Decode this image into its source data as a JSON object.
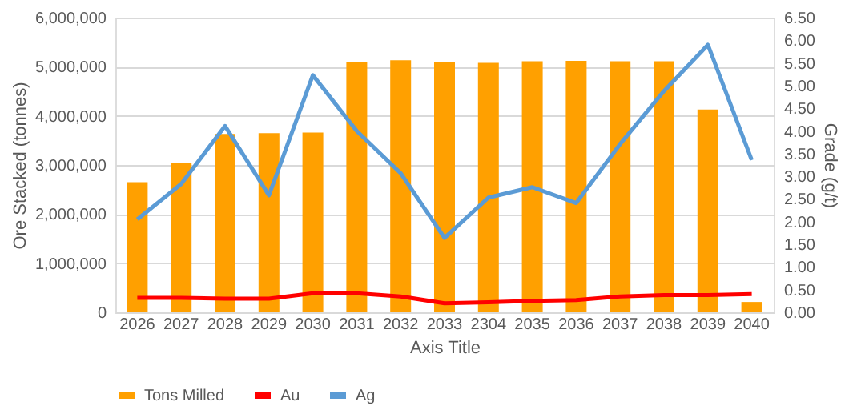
{
  "chart_data": {
    "type": "bar",
    "xlabel": "Axis Title",
    "ylabel": "Ore Stacked (tonnes)",
    "y2label": "Grade (g/t)",
    "categories": [
      "2026",
      "2027",
      "2028",
      "2029",
      "2030",
      "2031",
      "2032",
      "2033",
      "2304",
      "2035",
      "2036",
      "2037",
      "2038",
      "2039",
      "2040"
    ],
    "series": [
      {
        "name": "Tons Milled",
        "color": "#ffa000",
        "values": [
          2650000,
          3040000,
          3630000,
          3650000,
          3660000,
          5090000,
          5130000,
          5090000,
          5080000,
          5110000,
          5120000,
          5110000,
          5110000,
          4130000,
          210000
        ]
      },
      {
        "name": "Au",
        "type": "line",
        "axis": "y2",
        "color": "#ff0000",
        "values": [
          0.32,
          0.32,
          0.3,
          0.3,
          0.42,
          0.42,
          0.35,
          0.2,
          0.22,
          0.25,
          0.27,
          0.35,
          0.38,
          0.38,
          0.4
        ]
      },
      {
        "name": "Ag",
        "type": "line",
        "axis": "y2",
        "color": "#5b9bd5",
        "values": [
          2.05,
          2.83,
          4.11,
          2.58,
          5.23,
          4.0,
          3.07,
          1.64,
          2.53,
          2.76,
          2.41,
          3.71,
          4.88,
          5.9,
          3.36
        ]
      }
    ],
    "ylim": [
      0,
      6000000
    ],
    "yticks": [
      0,
      {
        "value": 1000000,
        "label": "1,000,000"
      },
      {
        "value": 2000000,
        "label": "2,000,000"
      },
      {
        "value": 3000000,
        "label": "3,000,000"
      },
      {
        "value": 4000000,
        "label": "4,000,000"
      },
      {
        "value": 5000000,
        "label": "5,000,000"
      },
      {
        "value": 6000000,
        "label": "6,000,000"
      }
    ],
    "y2lim": [
      0,
      6.5
    ],
    "y2ticks": [
      {
        "value": 0,
        "label": "0.00"
      },
      {
        "value": 0.5,
        "label": "0.50"
      },
      {
        "value": 1,
        "label": "1.00"
      },
      {
        "value": 1.5,
        "label": "1.50"
      },
      {
        "value": 2,
        "label": "2.00"
      },
      {
        "value": 2.5,
        "label": "2.50"
      },
      {
        "value": 3,
        "label": "3.00"
      },
      {
        "value": 3.5,
        "label": "3.50"
      },
      {
        "value": 4,
        "label": "4.00"
      },
      {
        "value": 4.5,
        "label": "4.50"
      },
      {
        "value": 5,
        "label": "5.00"
      },
      {
        "value": 5.5,
        "label": "5.50"
      },
      {
        "value": 6,
        "label": "6.00"
      },
      {
        "value": 6.5,
        "label": "6.50"
      }
    ],
    "grid": "y",
    "legend": "bottom",
    "marker": "none",
    "line_style": "solid"
  }
}
